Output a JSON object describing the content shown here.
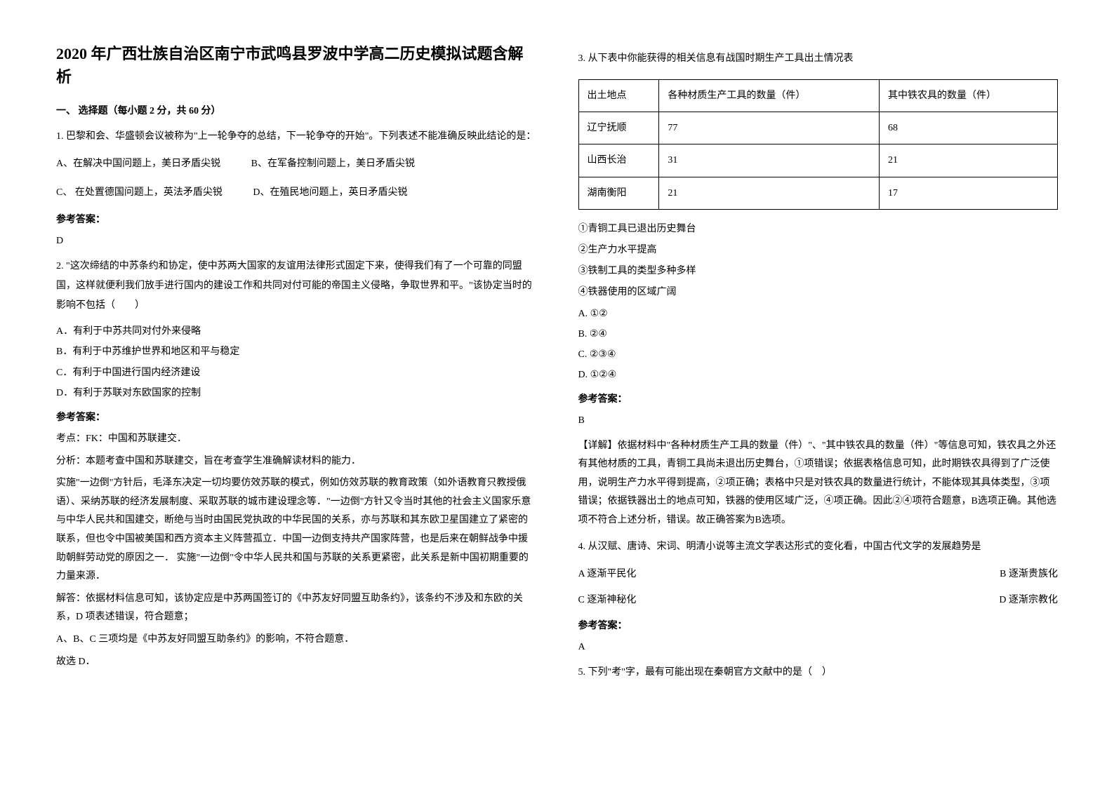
{
  "title": "2020 年广西壮族自治区南宁市武鸣县罗波中学高二历史模拟试题含解析",
  "section1_header": "一、 选择题（每小题 2 分，共 60 分）",
  "q1": {
    "text": "1. 巴黎和会、华盛顿会议被称为\"上一轮争夺的总结，下一轮争夺的开始\"。下列表述不能准确反映此结论的是：",
    "optA": "A、在解决中国问题上，美日矛盾尖锐",
    "optB": "B、在军备控制问题上，美日矛盾尖锐",
    "optC": "C、 在处置德国问题上，英法矛盾尖锐",
    "optD": "D、在殖民地问题上，英日矛盾尖锐",
    "answer_label": "参考答案：",
    "answer": "D"
  },
  "q2": {
    "text": "2. \"这次缔结的中苏条约和协定，使中苏两大国家的友谊用法律形式固定下来，使得我们有了一个可靠的同盟国，这样就便利我们放手进行国内的建设工作和共同对付可能的帝国主义侵略，争取世界和平。\"该协定当时的影响不包括（　　）",
    "optA": "A．有利于中苏共同对付外来侵略",
    "optB": "B．有利于中苏维护世界和地区和平与稳定",
    "optC": "C．有利于中国进行国内经济建设",
    "optD": "D．有利于苏联对东欧国家的控制",
    "answer_label": "参考答案：",
    "kaodian": "考点：FK：中国和苏联建交．",
    "fenxi": "分析：本题考查中国和苏联建交，旨在考查学生准确解读材料的能力．",
    "expl1": "实施\"一边倒\"方针后，毛泽东决定一切均要仿效苏联的模式，例如仿效苏联的教育政策（如外语教育只教授俄语）、采纳苏联的经济发展制度、采取苏联的城市建设理念等．\"一边倒\"方针又令当时其他的社会主义国家乐意与中华人民共和国建交，断绝与当时由国民党执政的中华民国的关系，亦与苏联和其东欧卫星国建立了紧密的联系，但也令中国被美国和西方资本主义阵营孤立．中国一边倒支持共产国家阵营，也是后来在朝鲜战争中援助朝鲜劳动党的原因之一． 实施\"一边倒\"令中华人民共和国与苏联的关系更紧密，此关系是新中国初期重要的力量来源．",
    "expl2": "解答：依据材料信息可知，该协定应是中苏两国签订的《中苏友好同盟互助条约》，该条约不涉及和东欧的关系，D 项表述错误，符合题意；",
    "expl3": "A、B、C 三项均是《中苏友好同盟互助条约》的影响，不符合题意．",
    "expl4": "故选 D．"
  },
  "q3": {
    "text": "3. 从下表中你能获得的相关信息有战国时期生产工具出土情况表",
    "table": {
      "headers": [
        "出土地点",
        "各种材质生产工具的数量（件）",
        "其中铁农具的数量（件）"
      ],
      "rows": [
        [
          "辽宁抚顺",
          "77",
          "68"
        ],
        [
          "山西长治",
          "31",
          "21"
        ],
        [
          "湖南衡阳",
          "21",
          "17"
        ]
      ]
    },
    "s1": "①青铜工具已退出历史舞台",
    "s2": "②生产力水平提高",
    "s3": "③铁制工具的类型多种多样",
    "s4": "④铁器使用的区域广阔",
    "optA": "A. ①②",
    "optB": "B. ②④",
    "optC": "C. ②③④",
    "optD": "D. ①②④",
    "answer_label": "参考答案：",
    "answer": "B",
    "expl": "【详解】依据材料中\"各种材质生产工具的数量（件）\"、\"其中铁农具的数量（件）\"等信息可知，铁农具之外还有其他材质的工具，青铜工具尚未退出历史舞台，①项错误；依据表格信息可知，此时期铁农具得到了广泛使用，说明生产力水平得到提高，②项正确；表格中只是对铁农具的数量进行统计，不能体现其具体类型，③项错误；依据铁器出土的地点可知，铁器的使用区域广泛，④项正确。因此②④项符合题意，B选项正确。其他选项不符合上述分析，错误。故正确答案为B选项。"
  },
  "q4": {
    "text": "4. 从汉赋、唐诗、宋词、明清小说等主流文学表达形式的变化看，中国古代文学的发展趋势是",
    "optA": "A 逐渐平民化",
    "optB": "B 逐渐贵族化",
    "optC": "C 逐渐神秘化",
    "optD": "D 逐渐宗教化",
    "answer_label": "参考答案：",
    "answer": "A"
  },
  "q5": {
    "text": "5. 下列\"考\"字，最有可能出现在秦朝官方文献中的是（　）"
  }
}
